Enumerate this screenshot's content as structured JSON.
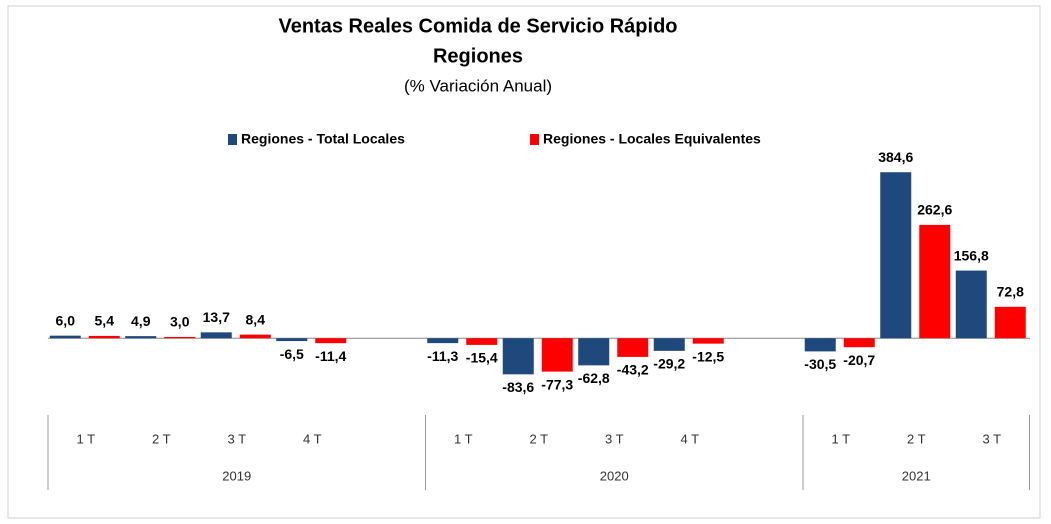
{
  "chart_data": {
    "type": "bar",
    "title": "Ventas Reales Comida de Servicio Rápido",
    "subtitle": "Regiones",
    "note": "(% Variación Anual)",
    "groups": [
      {
        "name": "2019",
        "categories": [
          "1 T",
          "2 T",
          "3 T",
          "4 T",
          null
        ]
      },
      {
        "name": "2020",
        "categories": [
          "1 T",
          "2 T",
          "3 T",
          "4 T",
          null
        ]
      },
      {
        "name": "2021",
        "categories": [
          "1 T",
          "2 T",
          "3 T"
        ]
      }
    ],
    "series": [
      {
        "name": "Regiones - Total Locales",
        "color": "#1f497d",
        "values": [
          6.0,
          4.9,
          13.7,
          -6.5,
          null,
          -11.3,
          -83.6,
          -62.8,
          -29.2,
          null,
          -30.5,
          384.6,
          156.8
        ],
        "value_labels": [
          "6,0",
          "4,9",
          "13,7",
          "-6,5",
          null,
          "-11,3",
          "-83,6",
          "-62,8",
          "-29,2",
          null,
          "-30,5",
          "384,6",
          "156,8"
        ]
      },
      {
        "name": "Regiones - Locales Equivalentes",
        "color": "#ff0000",
        "values": [
          5.4,
          3.0,
          8.4,
          -11.4,
          null,
          -15.4,
          -77.3,
          -43.2,
          -12.5,
          null,
          -20.7,
          262.6,
          72.8
        ],
        "value_labels": [
          "5,4",
          "3,0",
          "8,4",
          "-11,4",
          null,
          "-15,4",
          "-77,3",
          "-43,2",
          "-12,5",
          null,
          "-20,7",
          "262,6",
          "72,8"
        ]
      }
    ],
    "ylim": [
      -150,
      450
    ]
  }
}
